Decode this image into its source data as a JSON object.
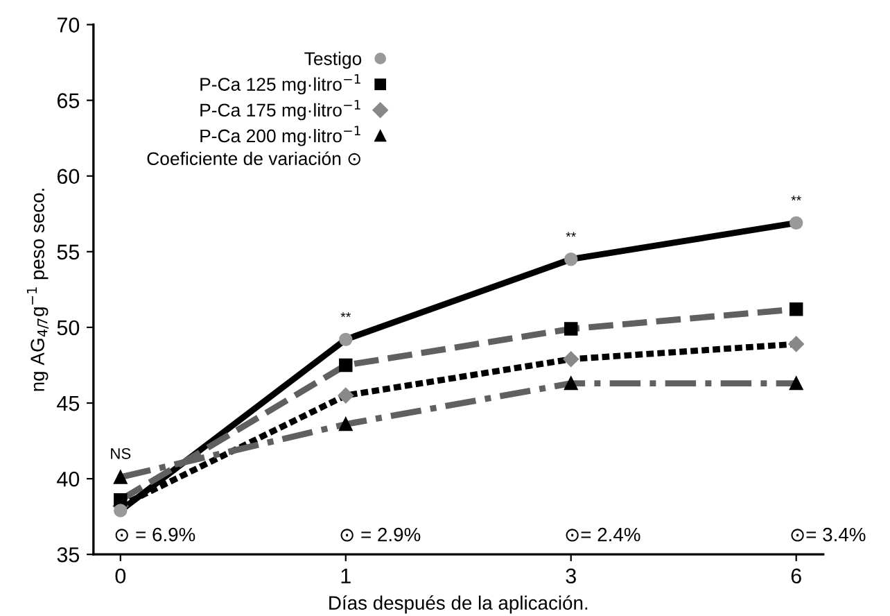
{
  "chart_data": {
    "type": "line",
    "xlabel": "Días después de la aplicación.",
    "ylabel": "ng AG$_{4/7}$g$^{−1}$ peso seco.",
    "categories": [
      "0",
      "1",
      "3",
      "6"
    ],
    "series": [
      {
        "name": "Testigo",
        "color": "#000000",
        "marker": "circle",
        "line_style": "solid",
        "values": [
          37.9,
          49.2,
          54.5,
          56.9
        ]
      },
      {
        "name": "P-Ca 125 mg·litro$^{−1}$",
        "color": "#606060",
        "marker": "square",
        "line_style": "dashed",
        "values": [
          38.6,
          47.5,
          49.9,
          51.2
        ]
      },
      {
        "name": "P-Ca 175 mg·litro$^{−1}$",
        "color": "#000000",
        "marker": "diamond",
        "line_style": "dotted",
        "values": [
          38.2,
          45.5,
          47.9,
          48.9
        ]
      },
      {
        "name": "P-Ca 200 mg·litro$^{−1}$",
        "color": "#606060",
        "marker": "triangle",
        "line_style": "dashdot",
        "values": [
          40.1,
          43.6,
          46.3,
          46.3
        ]
      }
    ],
    "ylim": [
      35,
      70
    ],
    "yticks": [
      35,
      40,
      45,
      50,
      55,
      60,
      65,
      70
    ],
    "grid": false,
    "legend": "top left",
    "annotations": [
      "NS",
      "**",
      "**",
      "**",
      "⊙ = 6.9%",
      "⊙ = 2.9%",
      "⊙= 2.4%",
      "⊙= 3.4%",
      "Coeficiente de variación ⊙"
    ]
  }
}
